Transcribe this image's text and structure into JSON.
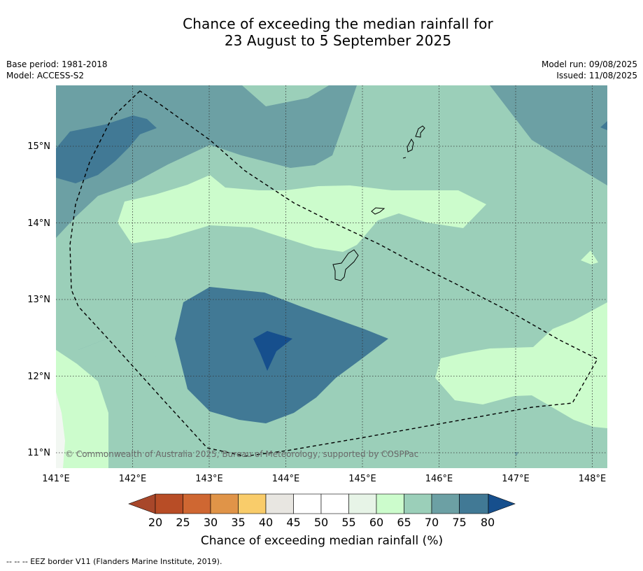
{
  "title": {
    "line1": "Chance of exceeding the median rainfall for",
    "line2": "23 August to 5 September 2025"
  },
  "meta_left": {
    "base_period": "Base period: 1981-2018",
    "model": "Model: ACCESS-S2"
  },
  "meta_right": {
    "model_run": "Model run: 09/08/2025",
    "issued": "Issued: 11/08/2025"
  },
  "map": {
    "lon_labels": [
      "141°E",
      "142°E",
      "143°E",
      "144°E",
      "145°E",
      "146°E",
      "147°E",
      "148°E"
    ],
    "lat_labels": [
      "15°N",
      "14°N",
      "13°N",
      "12°N",
      "11°N"
    ],
    "copyright": "© Commonwealth of Australia 2025, Bureau of Meteorology, supported by COSPPac",
    "eez_line_style": "dashed",
    "gridline_style": "dotted"
  },
  "colorbar": {
    "ticks": [
      "20",
      "25",
      "30",
      "35",
      "40",
      "45",
      "50",
      "55",
      "60",
      "65",
      "70",
      "75",
      "80"
    ],
    "colors": [
      "#a8472a",
      "#b84d26",
      "#cf6732",
      "#e09448",
      "#f9cc6a",
      "#e8e6e1",
      "#ffffff",
      "#ffffff",
      "#e7f4e7",
      "#ccfccc",
      "#9bcfb9",
      "#6ca0a4",
      "#417995",
      "#164f8d"
    ],
    "label": "Chance of exceeding median rainfall (%)"
  },
  "footer": {
    "legend_text": "--  --  -- EEZ border V11 (Flanders Marine Institute, 2019)."
  }
}
